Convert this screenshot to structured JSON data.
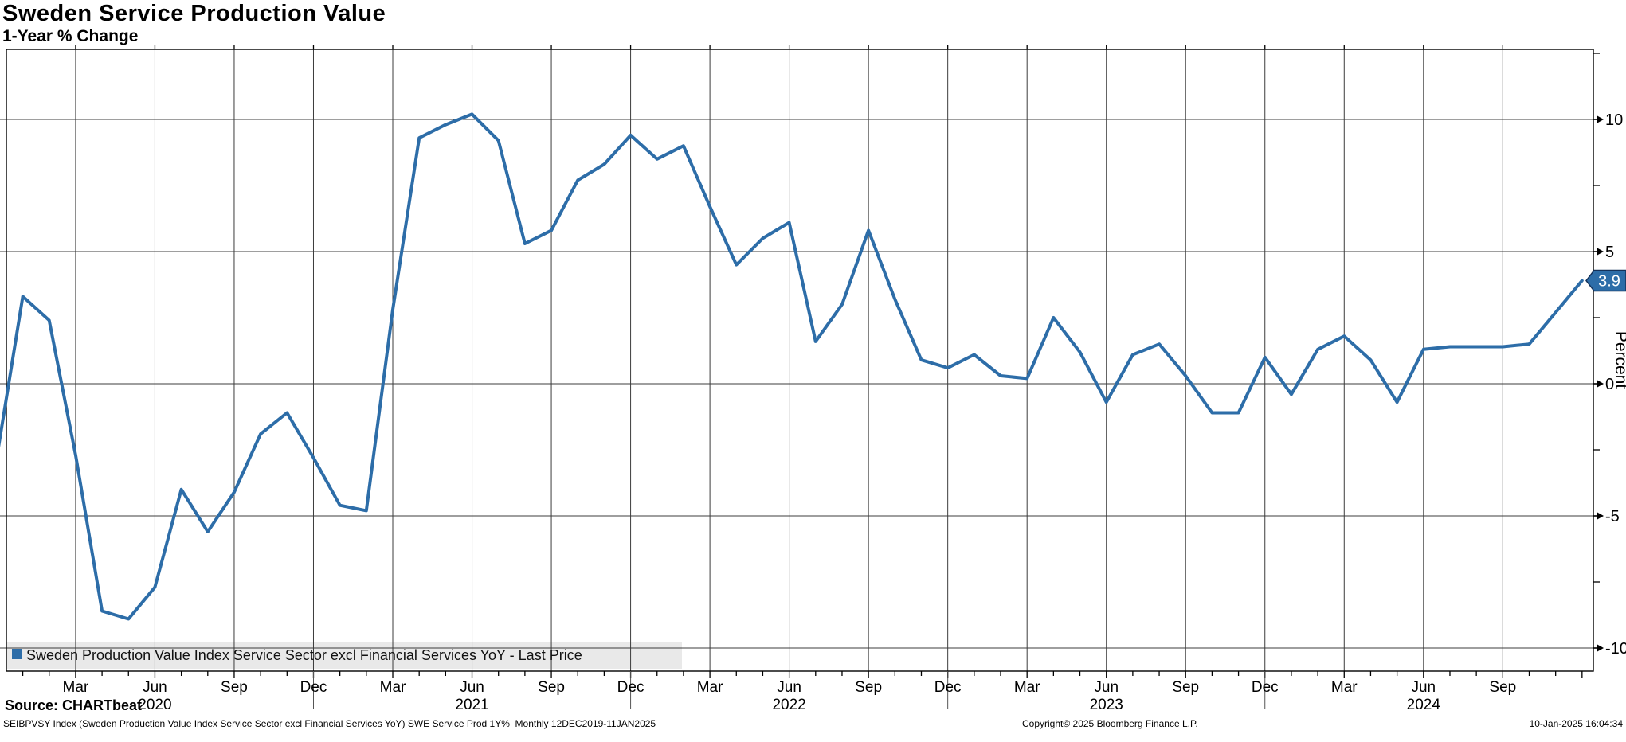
{
  "title": "Sweden Service Production Value",
  "subtitle": "1-Year % Change",
  "source": "Source: CHARTbeat",
  "footer": {
    "left": "SEIBPVSY Index (Sweden Production Value Index Service Sector excl Financial Services YoY) SWE Service Prod 1Y%  Monthly 12DEC2019-11JAN2025",
    "center": "Copyright© 2025 Bloomberg Finance L.P.",
    "right": "10-Jan-2025 16:04:34"
  },
  "legend": {
    "label": "Sweden Production Value Index Service Sector excl Financial Services YoY - Last Price",
    "swatch_color": "#2d6da8",
    "background": "#e9e9e9"
  },
  "last_price_flag": {
    "value": "3.9",
    "fill": "#2d6da8",
    "border": "#15325a",
    "text_color": "#ffffff"
  },
  "colors": {
    "line": "#2d6da8",
    "grid": "#3c3c3c",
    "frame": "#000000",
    "tick": "#000000",
    "text": "#000000"
  },
  "chart_data": {
    "type": "line",
    "title": "Sweden Service Production Value",
    "subtitle": "1-Year % Change",
    "series_name": "Sweden Production Value Index Service Sector excl Financial Services YoY - Last Price",
    "frequency": "Monthly",
    "period": "12DEC2019-11JAN2025",
    "start_month": "2019-12",
    "values": [
      -2.9,
      3.3,
      2.4,
      -2.7,
      -8.6,
      -8.9,
      -7.7,
      -4.0,
      -5.6,
      -4.1,
      -1.9,
      -1.1,
      -2.8,
      -4.6,
      -4.8,
      2.8,
      9.3,
      9.8,
      10.2,
      9.2,
      5.3,
      5.8,
      7.7,
      8.3,
      9.4,
      8.5,
      9.0,
      6.7,
      4.5,
      5.5,
      6.1,
      1.6,
      3.0,
      5.8,
      3.2,
      0.9,
      0.6,
      1.1,
      0.3,
      0.2,
      2.5,
      1.2,
      -0.7,
      1.1,
      1.5,
      0.3,
      -1.1,
      -1.1,
      1.0,
      -0.4,
      1.3,
      1.8,
      0.9,
      -0.7,
      1.3,
      1.4,
      1.4,
      1.4,
      1.5,
      2.7,
      3.9
    ],
    "last_value": 3.9,
    "ylabel": "Percent",
    "ylim": [
      -10.9,
      12.7
    ],
    "y_major_ticks": [
      10,
      5,
      0,
      -5,
      -10
    ],
    "y_minor_ticks": [
      12.5,
      7.5,
      2.5,
      -2.5,
      -7.5
    ],
    "grid": true,
    "legend_position": "bottom-left",
    "x_quarter_ticks": [
      {
        "m": 3,
        "label": "Mar"
      },
      {
        "m": 6,
        "label": "Jun"
      },
      {
        "m": 9,
        "label": "Sep"
      },
      {
        "m": 12,
        "label": "Dec"
      },
      {
        "m": 15,
        "label": "Mar"
      },
      {
        "m": 18,
        "label": "Jun"
      },
      {
        "m": 21,
        "label": "Sep"
      },
      {
        "m": 24,
        "label": "Dec"
      },
      {
        "m": 27,
        "label": "Mar"
      },
      {
        "m": 30,
        "label": "Jun"
      },
      {
        "m": 33,
        "label": "Sep"
      },
      {
        "m": 36,
        "label": "Dec"
      },
      {
        "m": 39,
        "label": "Mar"
      },
      {
        "m": 42,
        "label": "Jun"
      },
      {
        "m": 45,
        "label": "Sep"
      },
      {
        "m": 48,
        "label": "Dec"
      },
      {
        "m": 51,
        "label": "Mar"
      },
      {
        "m": 54,
        "label": "Jun"
      },
      {
        "m": 57,
        "label": "Sep"
      }
    ],
    "year_labels": [
      {
        "m": 6,
        "label": "2020"
      },
      {
        "m": 18,
        "label": "2021"
      },
      {
        "m": 30,
        "label": "2022"
      },
      {
        "m": 42,
        "label": "2023"
      },
      {
        "m": 54,
        "label": "2024"
      }
    ],
    "year_separators_m": [
      12,
      24,
      36,
      48
    ]
  }
}
